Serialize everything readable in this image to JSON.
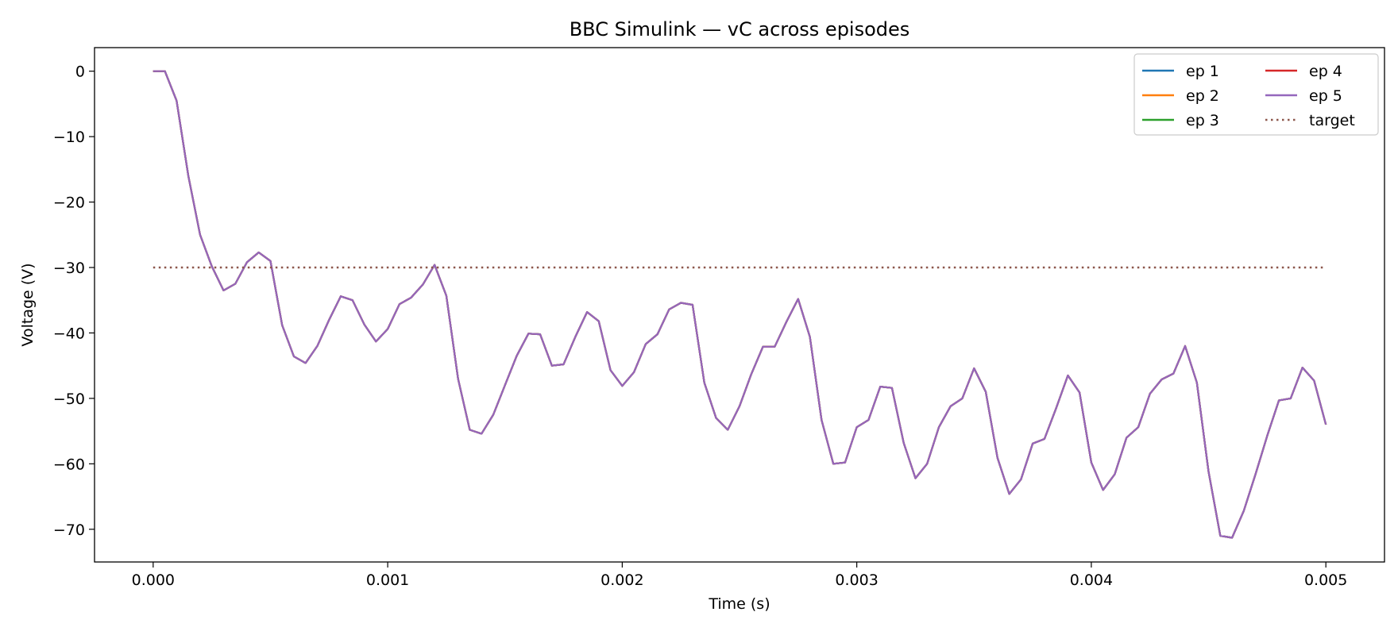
{
  "chart_data": {
    "type": "line",
    "title": "BBC Simulink — vC across episodes",
    "xlabel": "Time (s)",
    "ylabel": "Voltage (V)",
    "xlim": [
      -0.00025,
      0.00525
    ],
    "ylim": [
      -75,
      3.6
    ],
    "x_ticks": [
      0.0,
      0.001,
      0.002,
      0.003,
      0.004,
      0.005
    ],
    "x_tick_labels": [
      "0.000",
      "0.001",
      "0.002",
      "0.003",
      "0.004",
      "0.005"
    ],
    "y_ticks": [
      0,
      -10,
      -20,
      -30,
      -40,
      -50,
      -60,
      -70
    ],
    "y_tick_labels": [
      "0",
      "−10",
      "−20",
      "−30",
      "−40",
      "−50",
      "−60",
      "−70"
    ],
    "grid": false,
    "legend_position": "top-right",
    "legend_columns": 2,
    "x": [
      0.0,
      5e-05,
      0.0001,
      0.00015,
      0.0002,
      0.00025,
      0.0003,
      0.00035,
      0.0004,
      0.00045,
      0.0005,
      0.00055,
      0.0006,
      0.00065,
      0.0007,
      0.00075,
      0.0008,
      0.00085,
      0.0009,
      0.00095,
      0.001,
      0.00105,
      0.0011,
      0.00115,
      0.0012,
      0.00125,
      0.0013,
      0.00135,
      0.0014,
      0.00145,
      0.0015,
      0.00155,
      0.0016,
      0.00165,
      0.0017,
      0.00175,
      0.0018,
      0.00185,
      0.0019,
      0.00195,
      0.002,
      0.00205,
      0.0021,
      0.00215,
      0.0022,
      0.00225,
      0.0023,
      0.00235,
      0.0024,
      0.00245,
      0.0025,
      0.00255,
      0.0026,
      0.00265,
      0.0027,
      0.00275,
      0.0028,
      0.00285,
      0.0029,
      0.00295,
      0.003,
      0.00305,
      0.0031,
      0.00315,
      0.0032,
      0.00325,
      0.0033,
      0.00335,
      0.0034,
      0.00345,
      0.0035,
      0.00355,
      0.0036,
      0.00365,
      0.0037,
      0.00375,
      0.0038,
      0.00385,
      0.0039,
      0.00395,
      0.004,
      0.00405,
      0.0041,
      0.00415,
      0.0042,
      0.00425,
      0.0043,
      0.00435,
      0.0044,
      0.00445,
      0.0045,
      0.00455,
      0.0046,
      0.00465,
      0.0047,
      0.00475,
      0.0048,
      0.00485,
      0.0049,
      0.00495,
      0.005
    ],
    "values": [
      0.0,
      0.0,
      -4.5,
      -16.0,
      -25.0,
      -29.8,
      -33.5,
      -32.5,
      -29.2,
      -27.7,
      -29.0,
      -38.8,
      -43.6,
      -44.6,
      -42.0,
      -38.0,
      -34.4,
      -35.0,
      -38.7,
      -41.3,
      -39.4,
      -35.6,
      -34.6,
      -32.6,
      -29.6,
      -34.3,
      -47.0,
      -54.8,
      -55.4,
      -52.5,
      -48.0,
      -43.5,
      -40.1,
      -40.2,
      -45.0,
      -44.8,
      -40.6,
      -36.8,
      -38.2,
      -45.7,
      -48.1,
      -46.0,
      -41.7,
      -40.2,
      -36.4,
      -35.4,
      -35.7,
      -47.6,
      -53.0,
      -54.8,
      -51.2,
      -46.3,
      -42.1,
      -42.1,
      -38.3,
      -34.8,
      -40.6,
      -53.3,
      -60.0,
      -59.8,
      -54.4,
      -53.3,
      -48.2,
      -48.4,
      -56.8,
      -62.2,
      -60.0,
      -54.4,
      -51.2,
      -50.0,
      -45.4,
      -49.0,
      -59.1,
      -64.6,
      -62.4,
      -56.9,
      -56.2,
      -51.5,
      -46.5,
      -49.1,
      -59.8,
      -64.0,
      -61.6,
      -56.0,
      -54.4,
      -49.3,
      -47.1,
      -46.2,
      -42.0,
      -47.6,
      -61.2,
      -71.0,
      -71.3,
      -67.2,
      -61.6,
      -55.7,
      -50.3,
      -50.0,
      -45.3,
      -47.3,
      -54.0
    ],
    "target_y": -30.0,
    "series": [
      {
        "name": "ep 1",
        "color": "#1f77b4",
        "style": "solid"
      },
      {
        "name": "ep 2",
        "color": "#ff7f0e",
        "style": "solid"
      },
      {
        "name": "ep 3",
        "color": "#2ca02c",
        "style": "solid"
      },
      {
        "name": "ep 4",
        "color": "#d62728",
        "style": "solid"
      },
      {
        "name": "ep 5",
        "color": "#9467bd",
        "style": "solid"
      },
      {
        "name": "target",
        "color": "#8c564b",
        "style": "dotted"
      }
    ]
  }
}
